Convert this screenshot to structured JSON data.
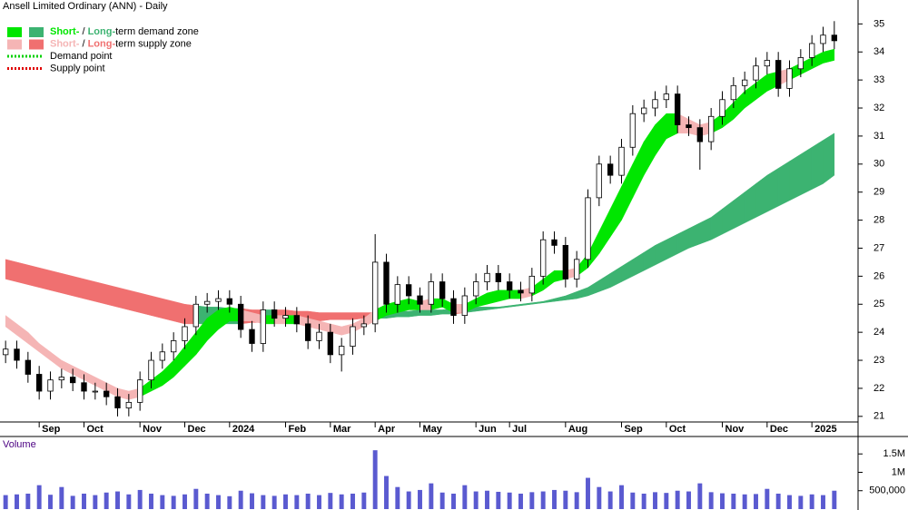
{
  "chart_data": [
    {
      "type": "candlestick",
      "title": "Ansell Limited Ordinary (ANN) - Daily",
      "categories": [
        null,
        null,
        null,
        "Sep",
        null,
        null,
        null,
        "Oct",
        null,
        null,
        null,
        null,
        "Nov",
        null,
        null,
        null,
        "Dec",
        null,
        null,
        null,
        "2024",
        null,
        null,
        null,
        null,
        "Feb",
        null,
        null,
        null,
        "Mar",
        null,
        null,
        null,
        "Apr",
        null,
        null,
        null,
        "May",
        null,
        null,
        null,
        null,
        "Jun",
        null,
        null,
        "Jul",
        null,
        null,
        null,
        null,
        "Aug",
        null,
        null,
        null,
        null,
        "Sep",
        null,
        null,
        null,
        "Oct",
        null,
        null,
        null,
        null,
        "Nov",
        null,
        null,
        null,
        "Dec",
        null,
        null,
        null,
        "2025",
        null,
        null
      ],
      "open": [
        23.2,
        23.4,
        23.0,
        22.5,
        21.9,
        22.3,
        22.4,
        22.2,
        21.9,
        21.9,
        21.7,
        21.3,
        21.5,
        22.3,
        23.0,
        23.3,
        23.7,
        24.2,
        25.0,
        25.1,
        25.2,
        25.0,
        24.1,
        23.6,
        24.8,
        24.5,
        24.6,
        24.3,
        23.7,
        24.0,
        23.2,
        23.5,
        24.2,
        24.3,
        26.5,
        25.0,
        25.7,
        25.3,
        25.0,
        25.8,
        25.2,
        24.6,
        25.3,
        25.8,
        26.1,
        25.8,
        25.5,
        25.4,
        26.0,
        27.3,
        27.1,
        25.9,
        26.6,
        28.8,
        30.0,
        29.6,
        30.6,
        31.8,
        32.0,
        32.3,
        32.5,
        31.4,
        31.3,
        30.8,
        31.7,
        32.3,
        32.8,
        33.0,
        33.5,
        33.7,
        32.7,
        33.4,
        33.8,
        34.3,
        34.6
      ],
      "high": [
        23.7,
        23.7,
        23.3,
        22.8,
        22.6,
        22.7,
        22.7,
        22.5,
        22.2,
        22.2,
        22.0,
        21.8,
        22.6,
        23.3,
        23.6,
        24.0,
        24.5,
        25.3,
        25.4,
        25.5,
        25.5,
        25.3,
        24.4,
        25.1,
        25.1,
        24.9,
        24.9,
        24.6,
        24.3,
        24.3,
        23.8,
        24.5,
        24.6,
        27.5,
        26.8,
        26.0,
        26.0,
        25.6,
        26.1,
        26.1,
        25.5,
        25.6,
        26.1,
        26.4,
        26.4,
        26.1,
        25.8,
        26.3,
        27.6,
        27.6,
        27.4,
        26.9,
        29.1,
        30.3,
        30.3,
        30.9,
        32.1,
        32.3,
        32.6,
        32.8,
        32.8,
        31.7,
        31.6,
        32.0,
        32.6,
        33.1,
        33.3,
        33.8,
        34.0,
        34.0,
        33.7,
        34.1,
        34.6,
        34.9,
        35.1
      ],
      "low": [
        22.9,
        22.7,
        22.2,
        21.6,
        21.6,
        22.0,
        21.9,
        21.6,
        21.6,
        21.4,
        21.0,
        21.0,
        21.2,
        22.0,
        22.7,
        23.0,
        23.4,
        23.9,
        24.7,
        24.8,
        24.7,
        23.8,
        23.3,
        23.3,
        24.2,
        24.2,
        24.0,
        23.4,
        23.4,
        22.9,
        22.6,
        23.2,
        23.9,
        24.0,
        24.7,
        24.7,
        25.0,
        24.7,
        24.7,
        24.9,
        24.3,
        24.3,
        25.0,
        25.5,
        25.5,
        25.2,
        25.1,
        25.1,
        25.7,
        26.8,
        25.6,
        25.6,
        26.3,
        28.5,
        29.3,
        29.3,
        30.3,
        31.5,
        31.7,
        32.0,
        31.1,
        31.0,
        29.8,
        30.5,
        31.4,
        32.0,
        32.5,
        32.7,
        33.2,
        32.4,
        32.4,
        33.1,
        33.5,
        34.0,
        34.1
      ],
      "close": [
        23.4,
        23.0,
        22.5,
        21.9,
        22.3,
        22.4,
        22.2,
        21.9,
        21.9,
        21.7,
        21.3,
        21.5,
        22.3,
        23.0,
        23.3,
        23.7,
        24.2,
        25.0,
        25.1,
        25.2,
        25.0,
        24.1,
        23.6,
        24.8,
        24.5,
        24.6,
        24.3,
        23.7,
        24.0,
        23.2,
        23.5,
        24.2,
        24.3,
        26.5,
        25.0,
        25.7,
        25.3,
        25.0,
        25.8,
        25.2,
        24.6,
        25.3,
        25.8,
        26.1,
        25.8,
        25.5,
        25.4,
        26.0,
        27.3,
        27.1,
        25.9,
        26.6,
        28.8,
        30.0,
        29.6,
        30.6,
        31.8,
        32.0,
        32.3,
        32.5,
        31.4,
        31.3,
        30.8,
        31.7,
        32.3,
        32.8,
        33.0,
        33.5,
        33.7,
        32.7,
        33.4,
        33.8,
        34.3,
        34.6,
        34.4
      ],
      "color": "#000000",
      "zones": [
        {
          "upper": [
            26.6,
            26.5,
            26.4,
            26.3,
            26.2,
            26.1,
            26.0,
            25.9,
            25.8,
            25.7,
            25.6,
            25.5,
            25.4,
            25.3,
            25.2,
            25.1,
            25.0,
            24.95,
            24.9,
            24.9,
            24.85,
            24.85,
            24.8,
            24.8,
            24.8,
            24.8,
            24.75,
            24.75,
            24.7,
            24.7,
            24.7,
            24.7,
            24.7,
            24.7,
            24.7,
            24.75,
            24.75,
            24.8,
            24.8,
            24.8,
            24.85,
            24.85,
            24.9,
            24.9,
            24.9,
            24.95,
            25.0,
            25.05,
            25.1,
            25.2,
            25.3,
            25.45,
            25.6,
            25.85,
            26.1,
            26.35,
            26.6,
            26.85,
            27.1,
            27.3,
            27.5,
            27.7,
            27.9,
            28.1,
            28.4,
            28.7,
            29.0,
            29.3,
            29.6,
            29.85,
            30.1,
            30.35,
            30.6,
            30.85,
            31.1
          ],
          "lower": [
            25.9,
            25.8,
            25.7,
            25.6,
            25.5,
            25.4,
            25.3,
            25.2,
            25.1,
            25.0,
            24.9,
            24.8,
            24.7,
            24.6,
            24.5,
            24.4,
            24.3,
            24.3,
            24.3,
            24.3,
            24.3,
            24.3,
            24.35,
            24.35,
            24.35,
            24.4,
            24.4,
            24.4,
            24.4,
            24.45,
            24.45,
            24.45,
            24.5,
            24.5,
            24.5,
            24.55,
            24.55,
            24.6,
            24.6,
            24.65,
            24.65,
            24.7,
            24.75,
            24.8,
            24.85,
            24.9,
            24.95,
            25.0,
            25.05,
            25.1,
            25.15,
            25.2,
            25.3,
            25.45,
            25.6,
            25.8,
            26.0,
            26.2,
            26.4,
            26.6,
            26.8,
            27.0,
            27.15,
            27.3,
            27.5,
            27.7,
            27.9,
            28.1,
            28.3,
            28.5,
            28.7,
            28.9,
            29.1,
            29.3,
            29.6
          ],
          "demand_color": "#3cb371",
          "supply_color": "#f07070"
        },
        {
          "upper": [
            24.6,
            24.3,
            24.0,
            23.6,
            23.3,
            23.0,
            22.8,
            22.6,
            22.4,
            22.2,
            22.0,
            21.9,
            22.0,
            22.3,
            22.6,
            23.0,
            23.5,
            24.0,
            24.5,
            24.8,
            24.9,
            24.8,
            24.7,
            24.6,
            24.6,
            24.6,
            24.6,
            24.5,
            24.4,
            24.3,
            24.2,
            24.3,
            24.5,
            24.8,
            25.0,
            25.1,
            25.2,
            25.1,
            25.2,
            25.2,
            25.0,
            25.0,
            25.2,
            25.4,
            25.5,
            25.5,
            25.5,
            25.6,
            25.9,
            26.2,
            26.2,
            26.3,
            26.8,
            27.6,
            28.4,
            29.2,
            30.0,
            30.8,
            31.4,
            31.8,
            31.8,
            31.6,
            31.4,
            31.5,
            31.8,
            32.2,
            32.6,
            32.9,
            33.2,
            33.3,
            33.4,
            33.6,
            33.8,
            34.0,
            34.1
          ],
          "lower": [
            24.2,
            23.9,
            23.6,
            23.3,
            23.0,
            22.7,
            22.5,
            22.3,
            22.1,
            21.9,
            21.7,
            21.6,
            21.7,
            21.9,
            22.1,
            22.4,
            22.8,
            23.2,
            23.7,
            24.1,
            24.4,
            24.4,
            24.4,
            24.3,
            24.3,
            24.3,
            24.3,
            24.2,
            24.1,
            24.0,
            23.9,
            24.0,
            24.2,
            24.4,
            24.6,
            24.7,
            24.8,
            24.8,
            24.8,
            24.9,
            24.7,
            24.7,
            24.9,
            25.0,
            25.1,
            25.2,
            25.2,
            25.3,
            25.5,
            25.8,
            25.9,
            26.0,
            26.3,
            26.8,
            27.4,
            28.0,
            28.8,
            29.6,
            30.3,
            30.9,
            31.1,
            31.1,
            31.0,
            31.1,
            31.3,
            31.6,
            32.0,
            32.3,
            32.6,
            32.8,
            33.0,
            33.2,
            33.4,
            33.6,
            33.7
          ],
          "demand_color": "#00e600",
          "supply_color": "#f5b5b5"
        }
      ],
      "legend": [
        {
          "parts": [
            "Short-",
            " / ",
            "Long-",
            "term demand zone"
          ]
        },
        {
          "parts": [
            "Short-",
            " / ",
            "Long-",
            "term supply zone"
          ]
        },
        {
          "text": "Demand point",
          "color": "#00d000"
        },
        {
          "text": "Supply point",
          "color": "#e00000"
        }
      ],
      "ylim": [
        20.8,
        35.4
      ],
      "yticks": [
        21,
        22,
        23,
        24,
        25,
        26,
        27,
        28,
        29,
        30,
        31,
        32,
        33,
        34,
        35
      ]
    },
    {
      "type": "bar",
      "title": "Volume",
      "values": [
        380000,
        400000,
        420000,
        650000,
        390000,
        600000,
        360000,
        420000,
        380000,
        450000,
        480000,
        400000,
        520000,
        420000,
        380000,
        360000,
        400000,
        550000,
        420000,
        380000,
        350000,
        500000,
        430000,
        380000,
        360000,
        400000,
        380000,
        420000,
        380000,
        440000,
        400000,
        420000,
        450000,
        1600000,
        900000,
        600000,
        480000,
        520000,
        700000,
        450000,
        420000,
        650000,
        480000,
        500000,
        470000,
        450000,
        420000,
        460000,
        480000,
        520000,
        500000,
        460000,
        850000,
        600000,
        480000,
        650000,
        450000,
        420000,
        460000,
        440000,
        500000,
        480000,
        700000,
        460000,
        430000,
        420000,
        400000,
        410000,
        550000,
        420000,
        380000,
        360000,
        400000,
        380000,
        500000
      ],
      "color": "#5a5ad0",
      "ylim": [
        0,
        1900000
      ],
      "yticks": [
        {
          "value": 500000,
          "label": "500,000"
        },
        {
          "value": 1000000,
          "label": "1M"
        },
        {
          "value": 1500000,
          "label": "1.5M"
        }
      ]
    }
  ]
}
